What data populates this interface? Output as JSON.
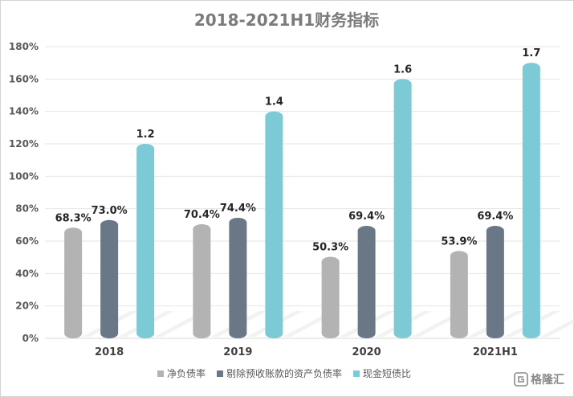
{
  "chart_data": {
    "type": "bar",
    "title": "2018-2021H1财务指标",
    "categories": [
      "2018",
      "2019",
      "2020",
      "2021H1"
    ],
    "series": [
      {
        "name": "净负债率",
        "values": [
          0.683,
          0.704,
          0.503,
          0.539
        ],
        "labels": [
          "68.3%",
          "70.4%",
          "50.3%",
          "53.9%"
        ],
        "color": "#b3b3b3"
      },
      {
        "name": "剔除预收账款的资产负债率",
        "values": [
          0.73,
          0.744,
          0.694,
          0.694
        ],
        "labels": [
          "73.0%",
          "74.4%",
          "69.4%",
          "69.4%"
        ],
        "color": "#6a7786"
      },
      {
        "name": "现金短债比",
        "values": [
          1.2,
          1.4,
          1.6,
          1.7
        ],
        "labels": [
          "1.2",
          "1.4",
          "1.6",
          "1.7"
        ],
        "color": "#7ccad5"
      }
    ],
    "yticks": [
      "0%",
      "20%",
      "40%",
      "60%",
      "80%",
      "100%",
      "120%",
      "140%",
      "160%",
      "180%"
    ],
    "ylim": [
      0,
      1.8
    ],
    "grid": true,
    "legend_position": "bottom"
  },
  "watermark": {
    "text": "格隆汇"
  }
}
